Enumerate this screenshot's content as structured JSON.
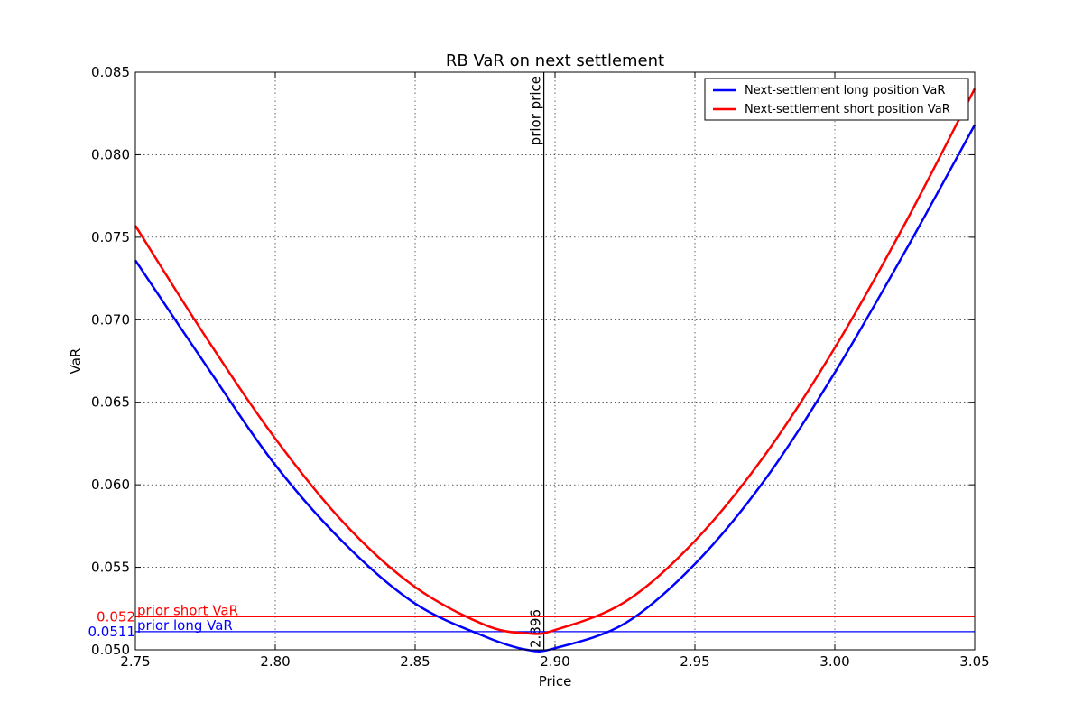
{
  "chart_data": {
    "type": "line",
    "title": "RB VaR on next settlement",
    "xlabel": "Price",
    "ylabel": "VaR",
    "xlim": [
      2.75,
      3.05
    ],
    "ylim": [
      0.05,
      0.085
    ],
    "xticks": [
      "2.75",
      "2.80",
      "2.85",
      "2.90",
      "2.95",
      "3.00",
      "3.05"
    ],
    "yticks": [
      "0.050",
      "0.055",
      "0.060",
      "0.065",
      "0.070",
      "0.075",
      "0.080",
      "0.085"
    ],
    "grid": true,
    "legend_position": "top-right",
    "series": [
      {
        "name": "Next-settlement long position VaR",
        "color": "#0000ff",
        "x": [
          2.75,
          2.775,
          2.8,
          2.825,
          2.85,
          2.875,
          2.89,
          2.9,
          2.925,
          2.95,
          2.975,
          3.0,
          3.025,
          3.05
        ],
        "values": [
          0.0736,
          0.0673,
          0.0612,
          0.0564,
          0.0528,
          0.0508,
          0.05,
          0.0501,
          0.0516,
          0.0552,
          0.0603,
          0.0668,
          0.0741,
          0.0818
        ]
      },
      {
        "name": "Next-settlement short position VaR",
        "color": "#ff0000",
        "x": [
          2.75,
          2.775,
          2.8,
          2.825,
          2.85,
          2.875,
          2.89,
          2.9,
          2.925,
          2.95,
          2.975,
          3.0,
          3.025,
          3.05
        ],
        "values": [
          0.0757,
          0.069,
          0.0628,
          0.0576,
          0.0538,
          0.0515,
          0.051,
          0.0512,
          0.0529,
          0.0566,
          0.0618,
          0.0683,
          0.0758,
          0.084
        ]
      }
    ],
    "reference_lines": {
      "vertical": {
        "x": 2.896,
        "label": "prior price",
        "value_label": "2.896",
        "color": "#000000"
      },
      "horizontal": [
        {
          "y": 0.052,
          "label": "prior short VaR",
          "value_label": "0.052",
          "color": "#ff0000"
        },
        {
          "y": 0.0511,
          "label": "prior long VaR",
          "value_label": "0.0511",
          "color": "#0000ff"
        }
      ]
    }
  }
}
